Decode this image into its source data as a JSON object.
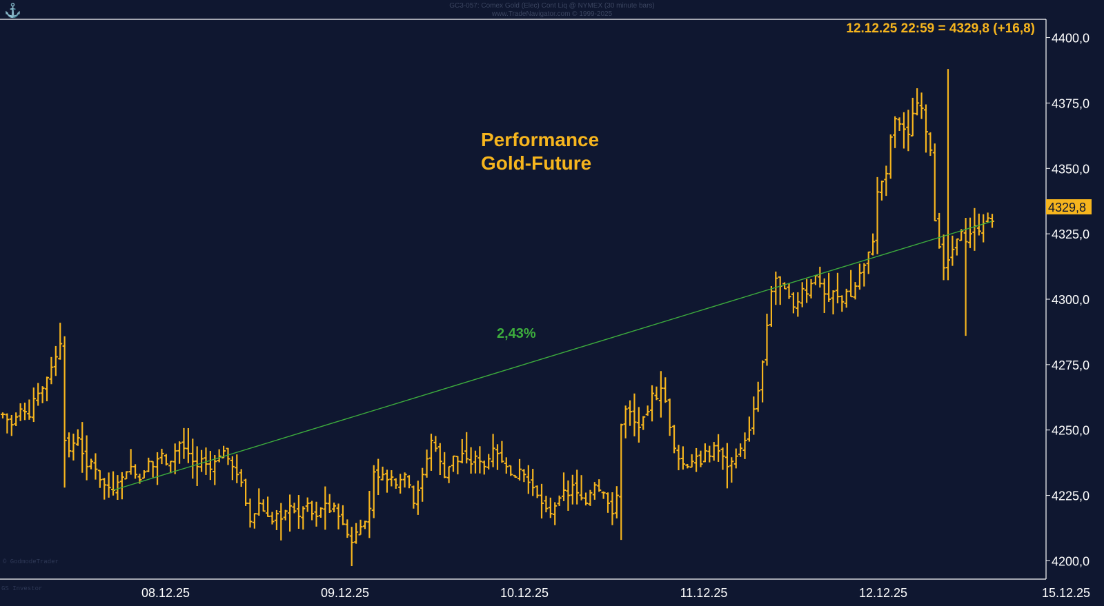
{
  "header": {
    "line1": "GC3-057:  Comex Gold (Elec) Cont Liq @ NYMEX  (30 minute bars)",
    "line2": "www.TradeNavigator.com © 1999-2025"
  },
  "footer": {
    "left_top": "© GodmodeTrader",
    "left_bottom": "GS Investor"
  },
  "icons": {
    "logo": "ship-anchor-icon"
  },
  "colors": {
    "background": "#0f1730",
    "bars": "#f6b51e",
    "trendline": "#3dad3d",
    "axis": "#ffffff",
    "text": "#f6b51e"
  },
  "chart_data": {
    "type": "ohlc",
    "title": "Performance\nGold-Future",
    "title_lines": [
      "Performance",
      "Gold-Future"
    ],
    "last_quote": "12.12.25 22:59 = 4329,8 (+16,8)",
    "last_price_label": "4329,8",
    "trend_label": "2,43%",
    "trendline": {
      "from": {
        "x": "07.12.25 20:30",
        "y": 4227.0
      },
      "to": {
        "x": "12.12.25 22:59",
        "y": 4329.8
      }
    },
    "ylim": [
      4193,
      4407
    ],
    "y_ticks": [
      "4200,0",
      "4225,0",
      "4250,0",
      "4275,0",
      "4300,0",
      "4325,0",
      "4350,0",
      "4375,0",
      "4400,0"
    ],
    "x_ticks": [
      "08.12.25",
      "09.12.25",
      "10.12.25",
      "11.12.25",
      "12.12.25",
      "15.12.25"
    ],
    "grid": false,
    "session_closes_approx": [
      {
        "date": "05.12.25",
        "close": 4270
      },
      {
        "date": "08.12.25",
        "close": 4240
      },
      {
        "date": "09.12.25",
        "close": 4210
      },
      {
        "date": "10.12.25",
        "close": 4225
      },
      {
        "date": "11.12.25",
        "close": 4305
      },
      {
        "date": "12.12.25",
        "close": 4329.8
      }
    ],
    "price_path_approx": [
      4256,
      4254,
      4252,
      4255,
      4258,
      4257,
      4255,
      4262,
      4264,
      4266,
      4270,
      4274,
      4278,
      4283,
      4246,
      4242,
      4245,
      4247,
      4241,
      4236,
      4238,
      4235,
      4231,
      4229,
      4228,
      4227,
      4230,
      4232,
      4234,
      4236,
      4233,
      4231,
      4234,
      4238,
      4236,
      4239,
      4241,
      4237,
      4238,
      4242,
      4245,
      4243,
      4241,
      4238,
      4236,
      4239,
      4237,
      4235,
      4238,
      4240,
      4242,
      4239,
      4236,
      4233,
      4230,
      4222,
      4215,
      4218,
      4222,
      4219,
      4217,
      4215,
      4218,
      4216,
      4219,
      4221,
      4219,
      4217,
      4220,
      4222,
      4218,
      4217,
      4220,
      4222,
      4219,
      4221,
      4217,
      4214,
      4210,
      4207,
      4211,
      4213,
      4215,
      4220,
      4234,
      4232,
      4233,
      4231,
      4232,
      4229,
      4231,
      4233,
      4229,
      4222,
      4227,
      4233,
      4239,
      4246,
      4243,
      4238,
      4232,
      4236,
      4240,
      4238,
      4241,
      4239,
      4237,
      4240,
      4238,
      4236,
      4239,
      4243,
      4241,
      4238,
      4236,
      4233,
      4232,
      4235,
      4233,
      4230,
      4228,
      4225,
      4222,
      4220,
      4218,
      4221,
      4224,
      4227,
      4225,
      4229,
      4226,
      4224,
      4222,
      4226,
      4229,
      4227,
      4226,
      4222,
      4218,
      4225,
      4252,
      4258,
      4257,
      4253,
      4251,
      4255,
      4257,
      4264,
      4262,
      4266,
      4261,
      4251,
      4243,
      4239,
      4237,
      4236,
      4238,
      4240,
      4237,
      4242,
      4240,
      4244,
      4242,
      4240,
      4236,
      4238,
      4240,
      4243,
      4246,
      4250,
      4258,
      4265,
      4276,
      4290,
      4303,
      4308,
      4305,
      4304,
      4301,
      4297,
      4299,
      4304,
      4302,
      4306,
      4309,
      4306,
      4302,
      4300,
      4303,
      4301,
      4299,
      4303,
      4301,
      4305,
      4310,
      4313,
      4318,
      4322,
      4341,
      4345,
      4348,
      4362,
      4369,
      4367,
      4365,
      4363,
      4371,
      4375,
      4373,
      4364,
      4357,
      4330,
      4320,
      4312,
      4315,
      4319,
      4323,
      4326,
      4322,
      4325,
      4328,
      4326,
      4329,
      4331,
      4329.8
    ]
  }
}
